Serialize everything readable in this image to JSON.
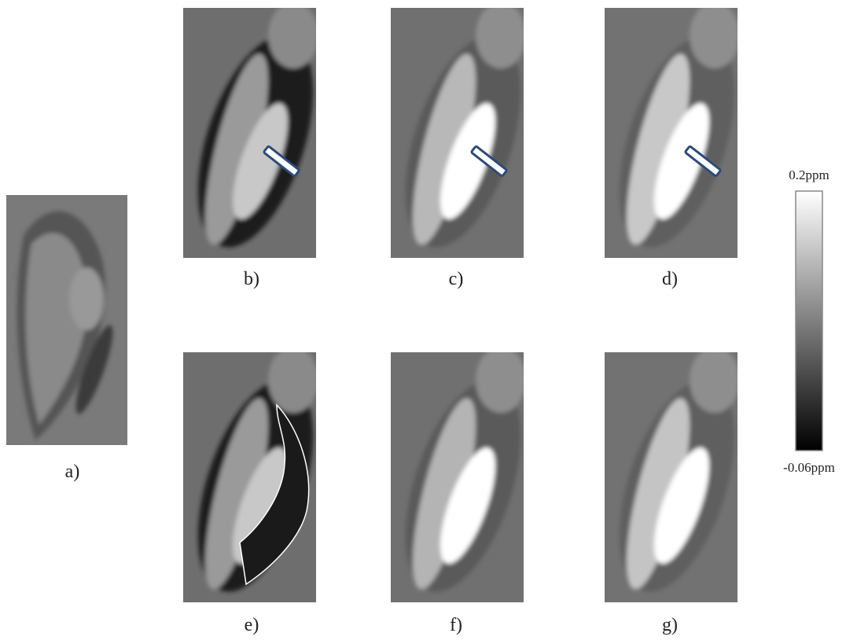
{
  "panels": [
    {
      "label": "a)"
    },
    {
      "label": "b)"
    },
    {
      "label": "c)"
    },
    {
      "label": "d)"
    },
    {
      "label": "e)"
    },
    {
      "label": "f)"
    },
    {
      "label": "g)"
    }
  ],
  "colorbar": {
    "max_label": "0.2ppm",
    "min_label": "-0.06ppm"
  }
}
